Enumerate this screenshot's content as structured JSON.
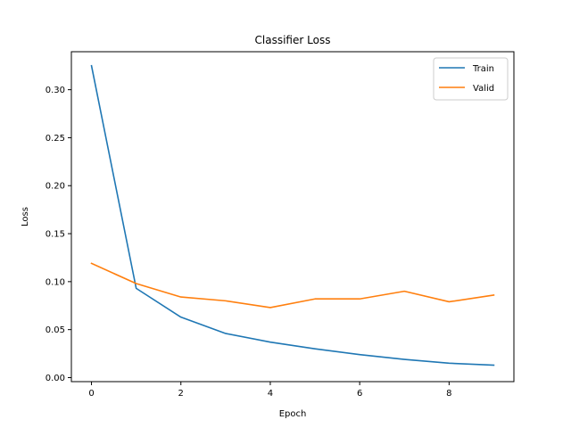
{
  "chart_data": {
    "type": "line",
    "title": "Classifier Loss",
    "xlabel": "Epoch",
    "ylabel": "Loss",
    "x": [
      0,
      1,
      2,
      3,
      4,
      5,
      6,
      7,
      8,
      9
    ],
    "xlim": [
      -0.45,
      9.45
    ],
    "ylim": [
      -0.0042,
      0.3396
    ],
    "xticks": [
      0,
      2,
      4,
      6,
      8
    ],
    "xtick_labels": [
      "0",
      "2",
      "4",
      "6",
      "8"
    ],
    "yticks": [
      0.0,
      0.05,
      0.1,
      0.15,
      0.2,
      0.25,
      0.3
    ],
    "ytick_labels": [
      "0.00",
      "0.05",
      "0.10",
      "0.15",
      "0.20",
      "0.25",
      "0.30"
    ],
    "grid": false,
    "legend_position": "upper right",
    "series": [
      {
        "name": "Train",
        "color": "#1f77b4",
        "values": [
          0.325,
          0.093,
          0.063,
          0.046,
          0.037,
          0.03,
          0.024,
          0.019,
          0.015,
          0.013
        ]
      },
      {
        "name": "Valid",
        "color": "#ff7f0e",
        "values": [
          0.119,
          0.098,
          0.084,
          0.08,
          0.073,
          0.082,
          0.082,
          0.09,
          0.079,
          0.086
        ]
      }
    ]
  }
}
